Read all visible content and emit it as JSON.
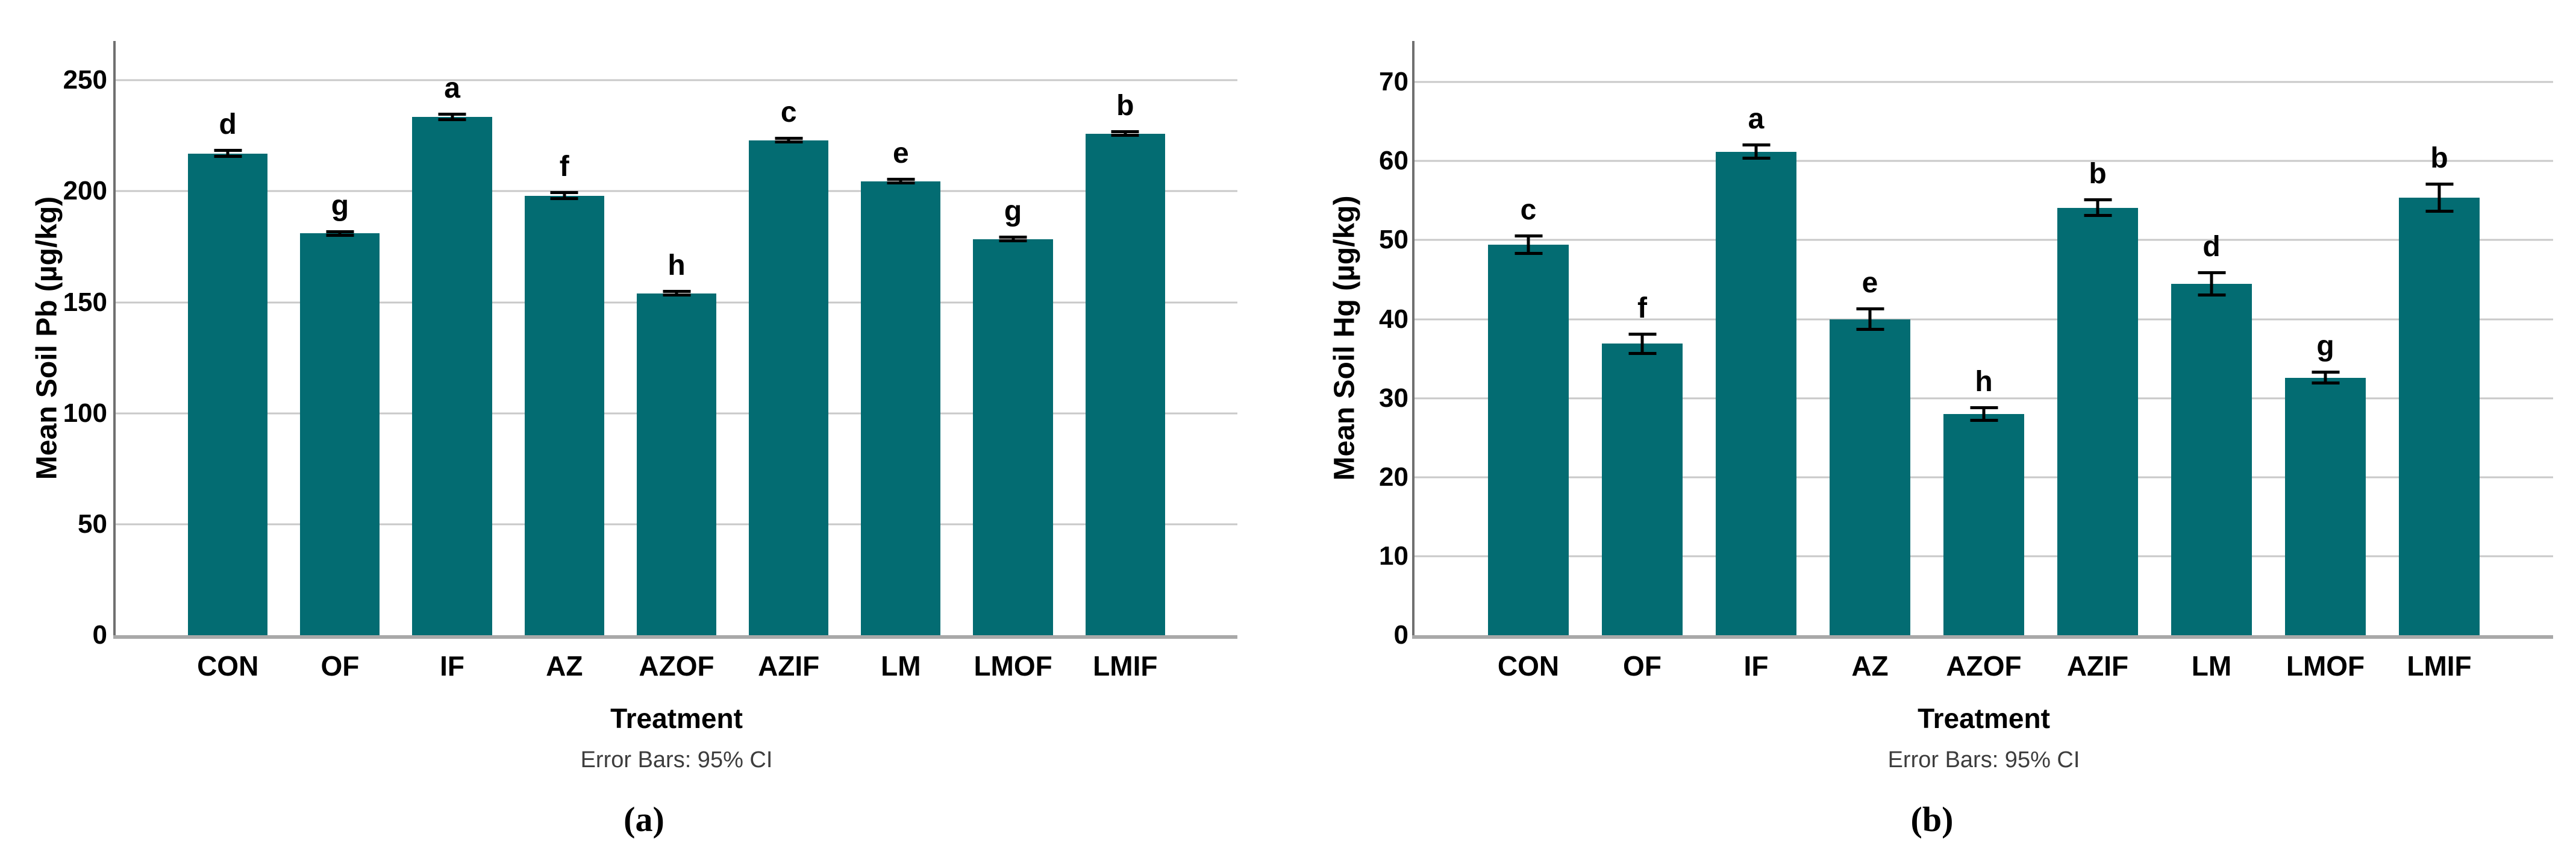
{
  "figure": {
    "bar_color": "#036c72",
    "grid_color": "#c9c9c9",
    "axis_line_color": "#707070",
    "baseline_color": "#a8a8a8",
    "error_bar_color": "#000000",
    "background": "#ffffff"
  },
  "chart_data": [
    {
      "type": "bar",
      "panel_caption": "(a)",
      "ylabel": "Mean Soil Pb (µg/kg)",
      "xlabel": "Treatment",
      "footnote": "Error Bars: 95% CI",
      "legend": "none",
      "grid": true,
      "categories": [
        "CON",
        "OF",
        "IF",
        "AZ",
        "AZOF",
        "AZIF",
        "LM",
        "LMOF",
        "LMIF"
      ],
      "values": [
        217.0,
        181.0,
        233.5,
        198.0,
        154.0,
        223.0,
        204.5,
        178.5,
        226.0
      ],
      "ci95_halfwidth": [
        2.0,
        1.5,
        2.0,
        2.0,
        1.5,
        1.5,
        1.5,
        1.5,
        1.5
      ],
      "sig_letters": [
        "d",
        "g",
        "a",
        "f",
        "h",
        "c",
        "e",
        "g",
        "b"
      ],
      "yticks": [
        0,
        50,
        100,
        150,
        200,
        250
      ],
      "ylim": [
        0,
        267.7
      ]
    },
    {
      "type": "bar",
      "panel_caption": "(b)",
      "ylabel": "Mean Soil Hg (µg/kg)",
      "xlabel": "Treatment",
      "footnote": "Error Bars: 95% CI",
      "legend": "none",
      "grid": true,
      "categories": [
        "CON",
        "OF",
        "IF",
        "AZ",
        "AZOF",
        "AZIF",
        "LM",
        "LMOF",
        "LMIF"
      ],
      "values": [
        49.4,
        36.9,
        61.2,
        40.0,
        28.0,
        54.1,
        44.5,
        32.6,
        55.4
      ],
      "ci95_halfwidth": [
        1.3,
        1.4,
        1.0,
        1.5,
        1.0,
        1.2,
        1.6,
        0.9,
        1.9
      ],
      "sig_letters": [
        "c",
        "f",
        "a",
        "e",
        "h",
        "b",
        "d",
        "g",
        "b"
      ],
      "yticks": [
        0,
        10,
        20,
        30,
        40,
        50,
        60,
        70
      ],
      "ylim": [
        0,
        75.2
      ]
    }
  ]
}
